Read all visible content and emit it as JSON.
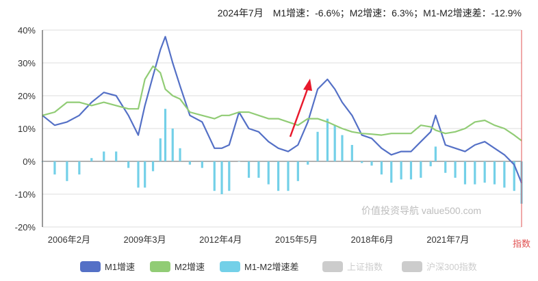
{
  "header": {
    "summary": "2024年7月　M1增速：-6.6%；M2增速：6.3%；M1-M2增速差：-12.9%"
  },
  "watermark": "价值投资导航 value500.com",
  "right_axis_label": "指数",
  "colors": {
    "m1": "#5470c6",
    "m2": "#91cc75",
    "diff": "#73d0e8",
    "inactive": "#cccccc",
    "arrow": "#e8192c",
    "cursor": "#e05050",
    "grid": "#dddddd"
  },
  "legend": [
    {
      "label": "M1增速",
      "color": "#5470c6",
      "active": true
    },
    {
      "label": "M2增速",
      "color": "#91cc75",
      "active": true
    },
    {
      "label": "M1-M2增速差",
      "color": "#73d0e8",
      "active": true
    },
    {
      "label": "上证指数",
      "color": "#cccccc",
      "active": false
    },
    {
      "label": "沪深300指数",
      "color": "#cccccc",
      "active": false
    }
  ],
  "chart_data": {
    "type": "line",
    "x_range": [
      2005.0,
      2024.5
    ],
    "ylim": [
      -20,
      40
    ],
    "yticks": [
      -20,
      -10,
      0,
      10,
      20,
      30,
      40
    ],
    "ytick_labels": [
      "-20%",
      "-10%",
      "0%",
      "10%",
      "20%",
      "30%",
      "40%"
    ],
    "xticks": [
      2006.083,
      2009.167,
      2012.25,
      2015.333,
      2018.417,
      2021.5
    ],
    "xtick_labels": [
      "2006年2月",
      "2009年3月",
      "2012年4月",
      "2015年5月",
      "2018年6月",
      "2021年7月"
    ],
    "series": [
      {
        "name": "M1增速",
        "color": "#5470c6",
        "x": [
          2005.0,
          2005.5,
          2006.0,
          2006.5,
          2007.0,
          2007.5,
          2008.0,
          2008.5,
          2008.9,
          2009.17,
          2009.5,
          2009.8,
          2010.0,
          2010.3,
          2010.6,
          2011.0,
          2011.5,
          2012.0,
          2012.3,
          2012.6,
          2013.0,
          2013.4,
          2013.8,
          2014.2,
          2014.6,
          2015.0,
          2015.4,
          2015.8,
          2016.2,
          2016.6,
          2016.9,
          2017.2,
          2017.6,
          2018.0,
          2018.4,
          2018.8,
          2019.2,
          2019.6,
          2020.0,
          2020.4,
          2020.8,
          2021.0,
          2021.4,
          2021.8,
          2022.2,
          2022.6,
          2023.0,
          2023.4,
          2023.8,
          2024.2,
          2024.5
        ],
        "values": [
          14,
          11,
          12,
          14,
          18,
          21,
          20,
          14,
          8,
          17,
          26,
          34,
          38,
          30,
          23,
          14,
          12,
          4,
          4,
          5,
          15,
          10,
          9,
          6,
          4,
          3,
          5,
          12,
          22,
          25,
          22,
          18,
          14,
          8,
          7,
          4,
          2,
          3,
          3,
          6,
          9,
          14,
          5,
          4,
          3,
          5,
          6,
          4,
          2,
          -1,
          -6.6
        ]
      },
      {
        "name": "M2增速",
        "color": "#91cc75",
        "x": [
          2005.0,
          2005.5,
          2006.0,
          2006.5,
          2007.0,
          2007.5,
          2008.0,
          2008.5,
          2008.9,
          2009.17,
          2009.5,
          2009.8,
          2010.0,
          2010.3,
          2010.6,
          2011.0,
          2011.5,
          2012.0,
          2012.3,
          2012.6,
          2013.0,
          2013.4,
          2013.8,
          2014.2,
          2014.6,
          2015.0,
          2015.4,
          2015.8,
          2016.2,
          2016.6,
          2016.9,
          2017.2,
          2017.6,
          2018.0,
          2018.4,
          2018.8,
          2019.2,
          2019.6,
          2020.0,
          2020.4,
          2020.8,
          2021.0,
          2021.4,
          2021.8,
          2022.2,
          2022.6,
          2023.0,
          2023.4,
          2023.8,
          2024.2,
          2024.5
        ],
        "values": [
          14,
          15,
          18,
          18,
          17,
          18,
          17,
          16,
          16,
          25,
          29,
          27,
          22,
          20,
          19,
          15,
          14,
          13,
          14,
          14,
          15,
          15,
          14,
          13,
          13,
          12,
          11,
          13,
          13,
          12,
          11,
          10,
          9,
          8.5,
          8.3,
          8,
          8.5,
          8.5,
          8.5,
          11,
          10.5,
          9.5,
          8.5,
          9,
          10,
          12,
          12.5,
          11,
          10,
          8,
          6.3
        ]
      },
      {
        "name": "M1-M2增速差",
        "type": "bar",
        "color": "#73d0e8",
        "x": [
          2005.0,
          2005.5,
          2006.0,
          2006.5,
          2007.0,
          2007.5,
          2008.0,
          2008.5,
          2008.9,
          2009.17,
          2009.5,
          2009.8,
          2010.0,
          2010.3,
          2010.6,
          2011.0,
          2011.5,
          2012.0,
          2012.3,
          2012.6,
          2013.0,
          2013.4,
          2013.8,
          2014.2,
          2014.6,
          2015.0,
          2015.4,
          2015.8,
          2016.2,
          2016.6,
          2016.9,
          2017.2,
          2017.6,
          2018.0,
          2018.4,
          2018.8,
          2019.2,
          2019.6,
          2020.0,
          2020.4,
          2020.8,
          2021.0,
          2021.4,
          2021.8,
          2022.2,
          2022.6,
          2023.0,
          2023.4,
          2023.8,
          2024.2,
          2024.5
        ],
        "values": [
          0,
          -4,
          -6,
          -4,
          1,
          3,
          3,
          -2,
          -8,
          -8,
          -3,
          7,
          16,
          10,
          4,
          -1,
          -2,
          -9,
          -10,
          -9,
          0,
          -5,
          -5,
          -7,
          -9,
          -9,
          -6,
          -1,
          9,
          13,
          11,
          8,
          5,
          -0.5,
          -1.3,
          -4,
          -6.5,
          -5.5,
          -5.5,
          -5,
          -1.5,
          4.5,
          -3.5,
          -5,
          -7,
          -7,
          -6.5,
          -7,
          -8,
          -9,
          -12.9
        ]
      }
    ]
  }
}
